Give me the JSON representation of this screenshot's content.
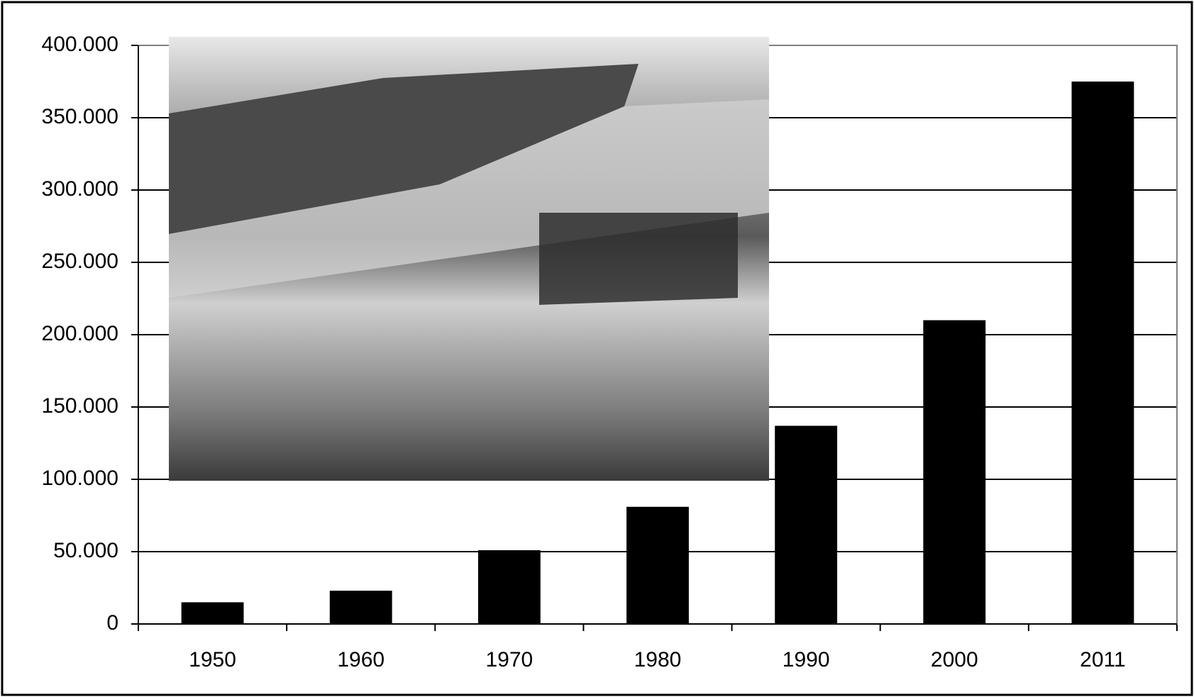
{
  "chart_data": {
    "type": "bar",
    "categories": [
      "1950",
      "1960",
      "1970",
      "1980",
      "1990",
      "2000",
      "2011"
    ],
    "values": [
      15000,
      23000,
      51000,
      81000,
      137000,
      210000,
      375000
    ],
    "color": "#000000",
    "ylim": [
      0,
      400000
    ],
    "yticks": [
      0,
      {
        "value": 50000,
        "label": "50.000"
      },
      {
        "value": 100000,
        "label": "100.000"
      },
      {
        "value": 150000,
        "label": "150.000"
      },
      {
        "value": 200000,
        "label": "200.000"
      },
      {
        "value": 250000,
        "label": "250.000"
      },
      {
        "value": 300000,
        "label": "300.000"
      },
      {
        "value": 350000,
        "label": "350.000"
      },
      {
        "value": 400000,
        "label": "400.000"
      }
    ],
    "grid": true
  }
}
